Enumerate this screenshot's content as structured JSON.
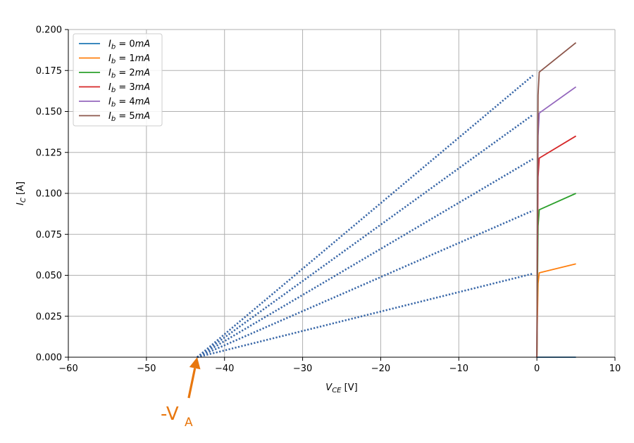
{
  "chart_data": {
    "type": "line",
    "xlabel": "V_CE [V]",
    "ylabel": "I_C [A]",
    "xlim": [
      -60,
      10
    ],
    "ylim": [
      0,
      0.2
    ],
    "xticks": [
      -60,
      -50,
      -40,
      -30,
      -20,
      -10,
      0,
      10
    ],
    "xtick_labels": [
      "−60",
      "−50",
      "−40",
      "−30",
      "−20",
      "−10",
      "0",
      "10"
    ],
    "yticks": [
      0.0,
      0.025,
      0.05,
      0.075,
      0.1,
      0.125,
      0.15,
      0.175,
      0.2
    ],
    "ytick_labels": [
      "0.000",
      "0.025",
      "0.050",
      "0.075",
      "0.100",
      "0.125",
      "0.150",
      "0.175",
      "0.200"
    ],
    "grid": true,
    "legend_position": "top-left",
    "series": [
      {
        "name": "I_b = 0mA",
        "color": "#1f77b4",
        "x": [
          0,
          0.3,
          5
        ],
        "y": [
          0,
          0,
          0
        ]
      },
      {
        "name": "I_b = 1mA",
        "color": "#ff7f0e",
        "x": [
          0,
          0.05,
          0.15,
          0.3,
          5
        ],
        "y": [
          0,
          0.02,
          0.045,
          0.0515,
          0.057
        ]
      },
      {
        "name": "I_b = 2mA",
        "color": "#2ca02c",
        "x": [
          0,
          0.05,
          0.15,
          0.3,
          5
        ],
        "y": [
          0,
          0.035,
          0.08,
          0.09,
          0.1
        ]
      },
      {
        "name": "I_b = 3mA",
        "color": "#d62728",
        "x": [
          0,
          0.05,
          0.15,
          0.3,
          5
        ],
        "y": [
          0,
          0.05,
          0.11,
          0.1215,
          0.135
        ]
      },
      {
        "name": "I_b = 4mA",
        "color": "#9467bd",
        "x": [
          0,
          0.05,
          0.15,
          0.3,
          5
        ],
        "y": [
          0,
          0.06,
          0.135,
          0.149,
          0.165
        ]
      },
      {
        "name": "I_b = 5mA",
        "color": "#8c564b",
        "x": [
          0,
          0.05,
          0.15,
          0.3,
          5
        ],
        "y": [
          0,
          0.07,
          0.16,
          0.174,
          0.192
        ]
      }
    ],
    "extrapolation_lines": {
      "color": "#3a68a8",
      "style": "dotted",
      "origin": {
        "x": -43.5,
        "y": 0
      },
      "endpoints": [
        {
          "x": -0.5,
          "y": 0.051
        },
        {
          "x": -0.5,
          "y": 0.0895
        },
        {
          "x": -0.5,
          "y": 0.121
        },
        {
          "x": -0.5,
          "y": 0.148
        },
        {
          "x": -0.5,
          "y": 0.172
        }
      ]
    },
    "annotation": {
      "text_main": "-V",
      "text_sub": "A",
      "color": "#e8770e",
      "target": {
        "x": -43.5,
        "y": 0
      }
    }
  }
}
